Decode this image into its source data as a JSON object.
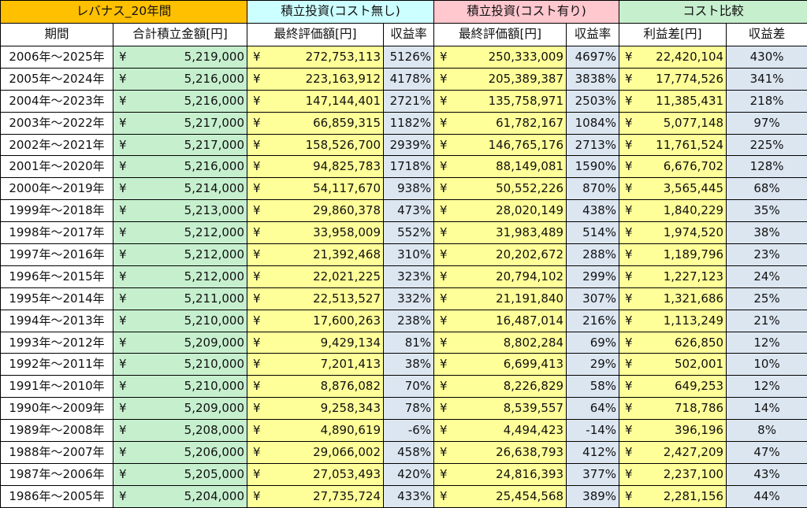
{
  "header": {
    "group1": "レバナス_20年間",
    "group2": "積立投資(コスト無し)",
    "group3": "積立投資(コスト有り)",
    "group4": "コスト比較"
  },
  "columns": {
    "period": "期間",
    "total": "合計積立金額[円]",
    "final_nocost": "最終評価額[円]",
    "rate_nocost": "収益率",
    "final_cost": "最終評価額[円]",
    "rate_cost": "収益率",
    "profit_diff": "利益差[円]",
    "rate_diff": "収益差"
  },
  "currency": "¥",
  "rows": [
    {
      "period": "2006年～2025年",
      "total": "5,219,000",
      "final_nocost": "272,753,113",
      "rate_nocost": "5126%",
      "final_cost": "250,333,009",
      "rate_cost": "4697%",
      "profit_diff": "22,420,104",
      "rate_diff": "430%"
    },
    {
      "period": "2005年～2024年",
      "total": "5,216,000",
      "final_nocost": "223,163,912",
      "rate_nocost": "4178%",
      "final_cost": "205,389,387",
      "rate_cost": "3838%",
      "profit_diff": "17,774,526",
      "rate_diff": "341%"
    },
    {
      "period": "2004年～2023年",
      "total": "5,216,000",
      "final_nocost": "147,144,401",
      "rate_nocost": "2721%",
      "final_cost": "135,758,971",
      "rate_cost": "2503%",
      "profit_diff": "11,385,431",
      "rate_diff": "218%"
    },
    {
      "period": "2003年～2022年",
      "total": "5,217,000",
      "final_nocost": "66,859,315",
      "rate_nocost": "1182%",
      "final_cost": "61,782,167",
      "rate_cost": "1084%",
      "profit_diff": "5,077,148",
      "rate_diff": "97%"
    },
    {
      "period": "2002年～2021年",
      "total": "5,217,000",
      "final_nocost": "158,526,700",
      "rate_nocost": "2939%",
      "final_cost": "146,765,176",
      "rate_cost": "2713%",
      "profit_diff": "11,761,524",
      "rate_diff": "225%"
    },
    {
      "period": "2001年～2020年",
      "total": "5,216,000",
      "final_nocost": "94,825,783",
      "rate_nocost": "1718%",
      "final_cost": "88,149,081",
      "rate_cost": "1590%",
      "profit_diff": "6,676,702",
      "rate_diff": "128%"
    },
    {
      "period": "2000年～2019年",
      "total": "5,214,000",
      "final_nocost": "54,117,670",
      "rate_nocost": "938%",
      "final_cost": "50,552,226",
      "rate_cost": "870%",
      "profit_diff": "3,565,445",
      "rate_diff": "68%"
    },
    {
      "period": "1999年～2018年",
      "total": "5,213,000",
      "final_nocost": "29,860,378",
      "rate_nocost": "473%",
      "final_cost": "28,020,149",
      "rate_cost": "438%",
      "profit_diff": "1,840,229",
      "rate_diff": "35%"
    },
    {
      "period": "1998年～2017年",
      "total": "5,212,000",
      "final_nocost": "33,958,009",
      "rate_nocost": "552%",
      "final_cost": "31,983,489",
      "rate_cost": "514%",
      "profit_diff": "1,974,520",
      "rate_diff": "38%"
    },
    {
      "period": "1997年～2016年",
      "total": "5,212,000",
      "final_nocost": "21,392,468",
      "rate_nocost": "310%",
      "final_cost": "20,202,672",
      "rate_cost": "288%",
      "profit_diff": "1,189,796",
      "rate_diff": "23%"
    },
    {
      "period": "1996年～2015年",
      "total": "5,212,000",
      "final_nocost": "22,021,225",
      "rate_nocost": "323%",
      "final_cost": "20,794,102",
      "rate_cost": "299%",
      "profit_diff": "1,227,123",
      "rate_diff": "24%"
    },
    {
      "period": "1995年～2014年",
      "total": "5,211,000",
      "final_nocost": "22,513,527",
      "rate_nocost": "332%",
      "final_cost": "21,191,840",
      "rate_cost": "307%",
      "profit_diff": "1,321,686",
      "rate_diff": "25%"
    },
    {
      "period": "1994年～2013年",
      "total": "5,210,000",
      "final_nocost": "17,600,263",
      "rate_nocost": "238%",
      "final_cost": "16,487,014",
      "rate_cost": "216%",
      "profit_diff": "1,113,249",
      "rate_diff": "21%"
    },
    {
      "period": "1993年～2012年",
      "total": "5,209,000",
      "final_nocost": "9,429,134",
      "rate_nocost": "81%",
      "final_cost": "8,802,284",
      "rate_cost": "69%",
      "profit_diff": "626,850",
      "rate_diff": "12%"
    },
    {
      "period": "1992年～2011年",
      "total": "5,210,000",
      "final_nocost": "7,201,413",
      "rate_nocost": "38%",
      "final_cost": "6,699,413",
      "rate_cost": "29%",
      "profit_diff": "502,001",
      "rate_diff": "10%"
    },
    {
      "period": "1991年～2010年",
      "total": "5,210,000",
      "final_nocost": "8,876,082",
      "rate_nocost": "70%",
      "final_cost": "8,226,829",
      "rate_cost": "58%",
      "profit_diff": "649,253",
      "rate_diff": "12%"
    },
    {
      "period": "1990年～2009年",
      "total": "5,209,000",
      "final_nocost": "9,258,343",
      "rate_nocost": "78%",
      "final_cost": "8,539,557",
      "rate_cost": "64%",
      "profit_diff": "718,786",
      "rate_diff": "14%"
    },
    {
      "period": "1989年～2008年",
      "total": "5,208,000",
      "final_nocost": "4,890,619",
      "rate_nocost": "-6%",
      "final_cost": "4,494,423",
      "rate_cost": "-14%",
      "profit_diff": "396,196",
      "rate_diff": "8%"
    },
    {
      "period": "1988年～2007年",
      "total": "5,206,000",
      "final_nocost": "29,066,002",
      "rate_nocost": "458%",
      "final_cost": "26,638,793",
      "rate_cost": "412%",
      "profit_diff": "2,427,209",
      "rate_diff": "47%"
    },
    {
      "period": "1987年～2006年",
      "total": "5,205,000",
      "final_nocost": "27,053,493",
      "rate_nocost": "420%",
      "final_cost": "24,816,393",
      "rate_cost": "377%",
      "profit_diff": "2,237,100",
      "rate_diff": "43%"
    },
    {
      "period": "1986年～2005年",
      "total": "5,204,000",
      "final_nocost": "27,735,724",
      "rate_nocost": "433%",
      "final_cost": "25,454,568",
      "rate_cost": "389%",
      "profit_diff": "2,281,156",
      "rate_diff": "44%"
    }
  ]
}
